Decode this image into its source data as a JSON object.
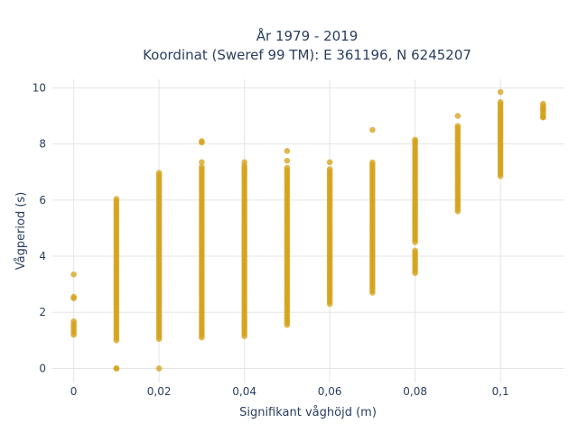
{
  "chart_data": {
    "type": "scatter",
    "title_line1": "År 1979 - 2019",
    "title_line2": "Koordinat (Sweref 99 TM): E 361196, N 6245207",
    "xlabel": "Signifikant våghöjd (m)",
    "ylabel": "Vågperiod (s)",
    "xlim": [
      -0.005,
      0.115
    ],
    "ylim": [
      -0.5,
      10.3
    ],
    "grid": true,
    "marker_color": "#d4a017",
    "x_ticks": [
      {
        "value": 0,
        "label": "0"
      },
      {
        "value": 0.02,
        "label": "0,02"
      },
      {
        "value": 0.04,
        "label": "0,04"
      },
      {
        "value": 0.06,
        "label": "0,06"
      },
      {
        "value": 0.08,
        "label": "0,08"
      },
      {
        "value": 0.1,
        "label": "0,1"
      }
    ],
    "y_ticks": [
      {
        "value": 0,
        "label": "0"
      },
      {
        "value": 2,
        "label": "2"
      },
      {
        "value": 4,
        "label": "4"
      },
      {
        "value": 6,
        "label": "6"
      },
      {
        "value": 8,
        "label": "8"
      },
      {
        "value": 10,
        "label": "10"
      }
    ],
    "columns": [
      {
        "x": 0,
        "ranges": [
          [
            1.2,
            1.7
          ]
        ],
        "points": [
          3.35,
          2.5,
          2.55
        ]
      },
      {
        "x": 0.01,
        "ranges": [
          [
            1.0,
            6.1
          ]
        ],
        "points": [
          0.0,
          0.0
        ]
      },
      {
        "x": 0.02,
        "ranges": [
          [
            1.05,
            7.0
          ]
        ],
        "points": [
          0.0
        ]
      },
      {
        "x": 0.03,
        "ranges": [
          [
            1.1,
            7.2
          ]
        ],
        "points": [
          7.35,
          8.05,
          8.1
        ]
      },
      {
        "x": 0.04,
        "ranges": [
          [
            1.15,
            7.3
          ]
        ],
        "points": [
          7.35
        ]
      },
      {
        "x": 0.05,
        "ranges": [
          [
            1.55,
            7.2
          ]
        ],
        "points": [
          7.4,
          7.75
        ]
      },
      {
        "x": 0.06,
        "ranges": [
          [
            2.3,
            7.15
          ]
        ],
        "points": [
          7.35
        ]
      },
      {
        "x": 0.07,
        "ranges": [
          [
            2.7,
            7.35
          ]
        ],
        "points": [
          8.5
        ]
      },
      {
        "x": 0.08,
        "ranges": [
          [
            4.5,
            8.15
          ],
          [
            3.4,
            4.2
          ]
        ],
        "points": [
          8.15
        ]
      },
      {
        "x": 0.09,
        "ranges": [
          [
            5.6,
            8.7
          ]
        ],
        "points": [
          9.0
        ]
      },
      {
        "x": 0.1,
        "ranges": [
          [
            6.85,
            9.55
          ]
        ],
        "points": [
          9.85
        ]
      },
      {
        "x": 0.11,
        "ranges": [
          [
            8.95,
            9.45
          ]
        ],
        "points": [
          8.95,
          9.25
        ]
      }
    ]
  }
}
